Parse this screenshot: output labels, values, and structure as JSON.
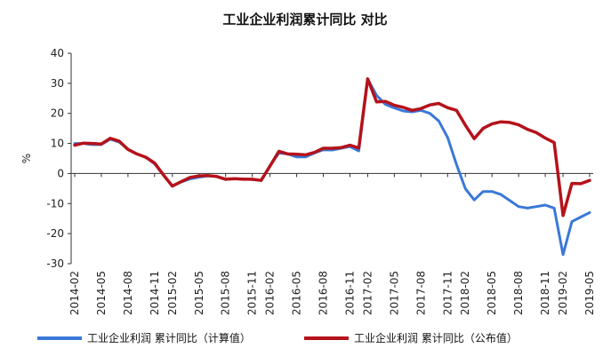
{
  "chart_data": {
    "type": "line",
    "title": "工业企业利润累计同比  对比",
    "ylabel": "%",
    "xlabel": "",
    "ylim": [
      -30,
      40
    ],
    "yticks": [
      40,
      30,
      20,
      10,
      0,
      -10,
      -20,
      -30
    ],
    "x": [
      "2014-02",
      "2014-03",
      "2014-04",
      "2014-05",
      "2014-06",
      "2014-07",
      "2014-08",
      "2014-09",
      "2014-10",
      "2014-11",
      "2014-12",
      "2015-02",
      "2015-03",
      "2015-04",
      "2015-05",
      "2015-06",
      "2015-07",
      "2015-08",
      "2015-09",
      "2015-10",
      "2015-11",
      "2015-12",
      "2016-02",
      "2016-03",
      "2016-04",
      "2016-05",
      "2016-06",
      "2016-07",
      "2016-08",
      "2016-09",
      "2016-10",
      "2016-11",
      "2016-12",
      "2017-02",
      "2017-03",
      "2017-04",
      "2017-05",
      "2017-06",
      "2017-07",
      "2017-08",
      "2017-09",
      "2017-10",
      "2017-11",
      "2017-12",
      "2018-02",
      "2018-03",
      "2018-04",
      "2018-05",
      "2018-06",
      "2018-07",
      "2018-08",
      "2018-09",
      "2018-10",
      "2018-11",
      "2018-12",
      "2019-02",
      "2019-03",
      "2019-04",
      "2019-05"
    ],
    "xtick_labels": [
      "2014-02",
      "2014-05",
      "2014-08",
      "2014-11",
      "2015-02",
      "2015-05",
      "2015-08",
      "2015-11",
      "2016-02",
      "2016-05",
      "2016-08",
      "2016-11",
      "2017-02",
      "2017-05",
      "2017-08",
      "2017-11",
      "2018-02",
      "2018-05",
      "2018-08",
      "2018-11",
      "2019-02",
      "2019-05"
    ],
    "grid": false,
    "legend_position": "bottom",
    "series": [
      {
        "name": "工业企业利润  累计同比（计算值）",
        "color": "#3a78d8",
        "values": [
          10.0,
          10.0,
          9.6,
          9.6,
          11.4,
          10.5,
          8.0,
          6.5,
          5.4,
          3.2,
          -0.5,
          -4.2,
          -2.8,
          -1.8,
          -1.2,
          -0.8,
          -1.0,
          -2.0,
          -1.8,
          -1.8,
          -2.0,
          -2.3,
          2.6,
          6.8,
          6.5,
          5.5,
          5.5,
          6.8,
          7.9,
          7.8,
          8.4,
          9.0,
          7.5,
          31.5,
          26.0,
          23.0,
          21.8,
          20.8,
          20.5,
          21.0,
          20.0,
          17.5,
          12.0,
          3.0,
          -5.0,
          -8.8,
          -6.0,
          -6.0,
          -7.0,
          -9.0,
          -11.0,
          -11.5,
          -11.0,
          -10.5,
          -11.5,
          -27.0,
          -16.0,
          -14.5,
          -13.0
        ]
      },
      {
        "name": "工业企业利润  累计同比（公布值）",
        "color": "#b5121b",
        "values": [
          9.4,
          10.1,
          10.0,
          9.8,
          11.7,
          10.8,
          8.0,
          6.5,
          5.4,
          3.5,
          -0.5,
          -4.2,
          -2.7,
          -1.3,
          -0.8,
          -0.7,
          -1.0,
          -1.9,
          -1.7,
          -1.9,
          -1.9,
          -2.3,
          2.5,
          7.4,
          6.5,
          6.4,
          6.2,
          7.0,
          8.4,
          8.4,
          8.6,
          9.4,
          8.5,
          31.5,
          23.8,
          24.0,
          22.7,
          22.0,
          21.0,
          21.6,
          22.8,
          23.3,
          21.9,
          21.0,
          16.1,
          11.6,
          15.0,
          16.5,
          17.2,
          17.0,
          16.2,
          14.7,
          13.6,
          11.8,
          10.3,
          -14.0,
          -3.3,
          -3.4,
          -2.3
        ]
      }
    ]
  }
}
